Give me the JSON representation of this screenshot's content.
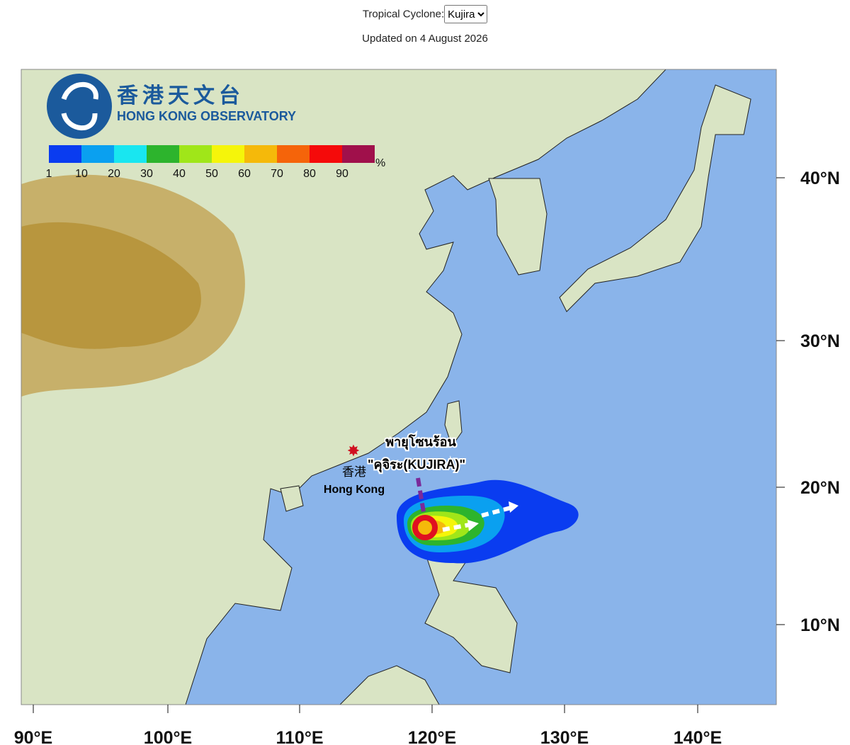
{
  "header": {
    "selector_label": "Tropical Cyclone:",
    "selected": "Kujira",
    "updated": "Updated on 4 August 2026"
  },
  "logo": {
    "chinese": "香港天文台",
    "english": "HONG KONG OBSERVATORY"
  },
  "scale": {
    "colors": [
      "#0a3cf0",
      "#0aa0f0",
      "#19e6f0",
      "#2db42d",
      "#a0e619",
      "#f5f50a",
      "#f5b90a",
      "#f5640a",
      "#f50a0a",
      "#a0104b"
    ],
    "labels": [
      "1",
      "10",
      "20",
      "30",
      "40",
      "50",
      "60",
      "70",
      "80",
      "90"
    ],
    "unit": "%"
  },
  "map": {
    "storm_type": "พายุโซนร้อน",
    "storm_name": "\"คุจิระ(KUJIRA)\"",
    "city_chinese": "香港",
    "city": "Hong Kong"
  },
  "latitudes": [
    "40°N",
    "30°N",
    "20°N",
    "10°N"
  ],
  "longitudes": [
    "90°E",
    "100°E",
    "110°E",
    "120°E",
    "130°E",
    "140°E"
  ]
}
